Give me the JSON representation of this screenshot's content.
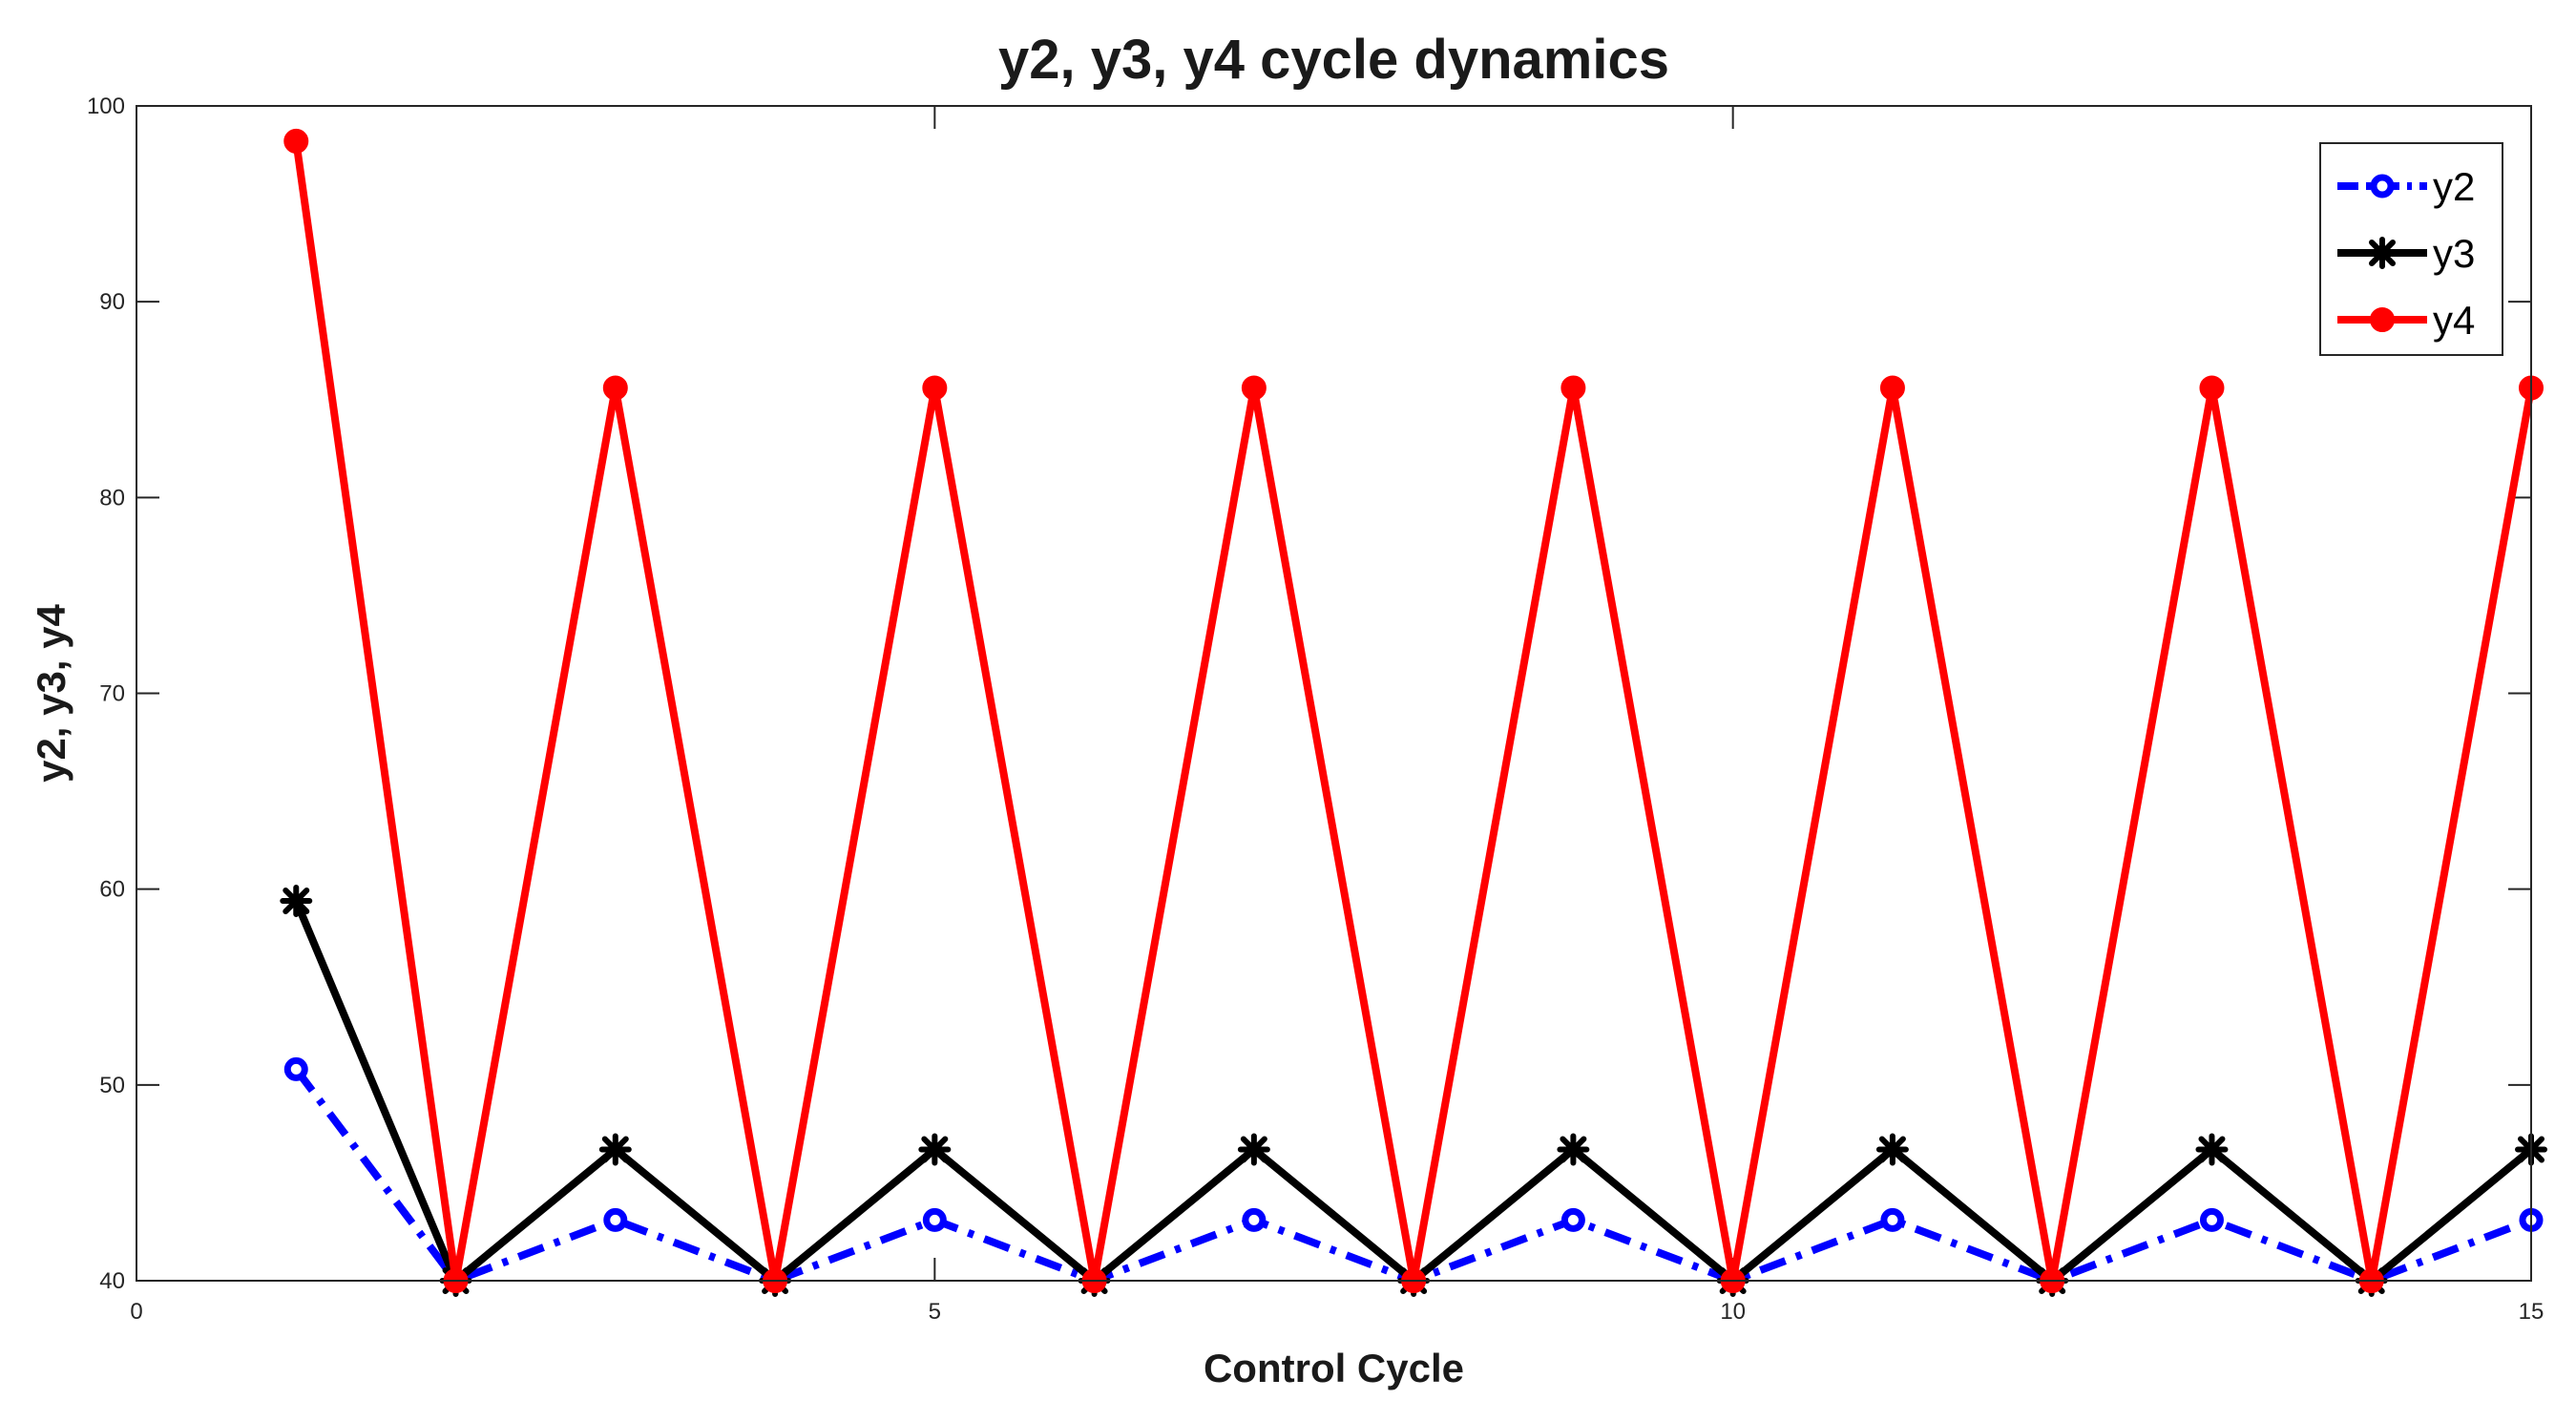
{
  "chart_data": {
    "type": "line",
    "title": "y2, y3, y4 cycle dynamics",
    "xlabel": "Control Cycle",
    "ylabel": "y2, y3, y4",
    "xlim": [
      0,
      15
    ],
    "ylim": [
      40,
      100
    ],
    "x_ticks": [
      0,
      5,
      10,
      15
    ],
    "y_ticks": [
      40,
      50,
      60,
      70,
      80,
      90,
      100
    ],
    "x_tick_labels": [
      "0",
      "5",
      "10",
      "15"
    ],
    "y_tick_labels": [
      "40",
      "50",
      "60",
      "70",
      "80",
      "90",
      "100"
    ],
    "grid": false,
    "legend_position": "top-right",
    "x": [
      1,
      2,
      3,
      4,
      5,
      6,
      7,
      8,
      9,
      10,
      11,
      12,
      13,
      14,
      15
    ],
    "series": [
      {
        "name": "y2",
        "color": "#0000ff",
        "line_style": "dash-dot",
        "marker": "circle",
        "values": [
          50.8,
          40,
          43.1,
          40,
          43.1,
          40,
          43.1,
          40,
          43.1,
          40,
          43.1,
          40,
          43.1,
          40,
          43.1
        ]
      },
      {
        "name": "y3",
        "color": "#000000",
        "line_style": "solid",
        "marker": "star",
        "values": [
          59.4,
          40,
          46.7,
          40,
          46.7,
          40,
          46.7,
          40,
          46.7,
          40,
          46.7,
          40,
          46.7,
          40,
          46.7
        ]
      },
      {
        "name": "y4",
        "color": "#ff0000",
        "line_style": "solid",
        "marker": "filled-circle",
        "values": [
          98.2,
          40,
          85.6,
          40,
          85.6,
          40,
          85.6,
          40,
          85.6,
          40,
          85.6,
          40,
          85.6,
          40,
          85.6
        ]
      }
    ]
  }
}
